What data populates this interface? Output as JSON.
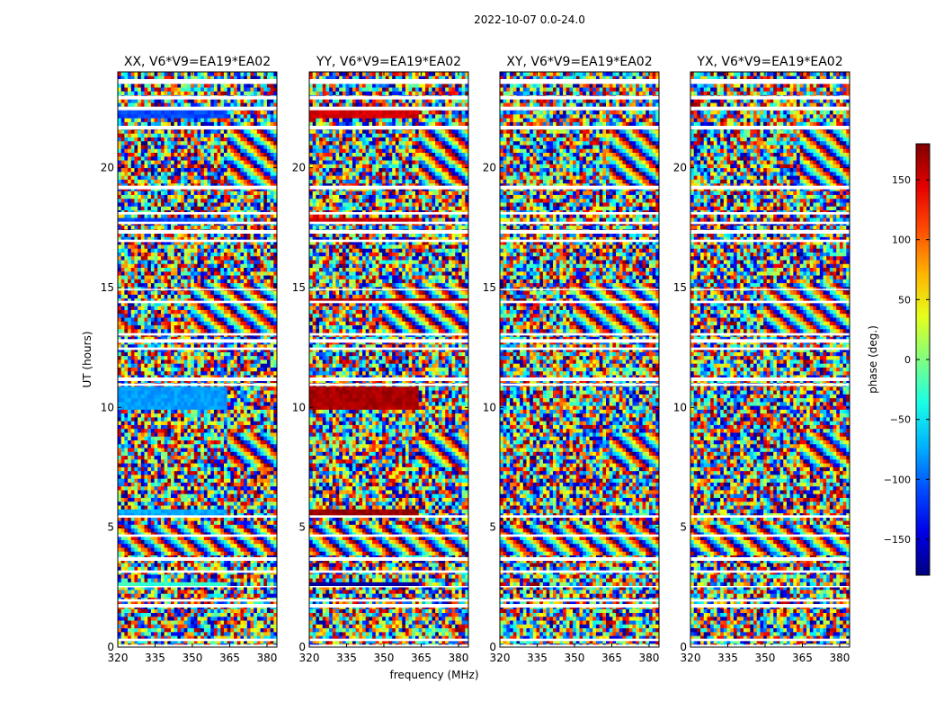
{
  "chart_data": {
    "type": "heatmap",
    "suptitle": "2022-10-07 0.0-24.0",
    "panels": [
      {
        "title": "XX, V6*V9=EA19*EA02",
        "pol": "XX"
      },
      {
        "title": "YY, V6*V9=EA19*EA02",
        "pol": "YY"
      },
      {
        "title": "XY, V6*V9=EA19*EA02",
        "pol": "XY"
      },
      {
        "title": "YX, V6*V9=EA19*EA02",
        "pol": "YX"
      }
    ],
    "xlabel": "frequency (MHz)",
    "ylabel": "UT (hours)",
    "xlim": [
      320,
      384
    ],
    "ylim": [
      0,
      24
    ],
    "xticks": [
      320,
      335,
      350,
      365,
      380
    ],
    "yticks": [
      0,
      5,
      10,
      15,
      20
    ],
    "colorbar": {
      "label": "phase (deg.)",
      "range": [
        -180,
        180
      ],
      "ticks": [
        -150,
        -100,
        -50,
        0,
        50,
        100,
        150
      ],
      "colormap": "jet"
    },
    "flag_gaps_hours": [
      [
        23.5,
        23.7
      ],
      [
        22.85,
        23.0
      ],
      [
        22.4,
        22.55
      ],
      [
        21.6,
        21.75
      ],
      [
        19.1,
        19.25
      ],
      [
        18.05,
        18.15
      ],
      [
        17.65,
        17.75
      ],
      [
        17.25,
        17.4
      ],
      [
        16.9,
        17.0
      ],
      [
        14.9,
        14.95
      ],
      [
        14.35,
        14.45
      ],
      [
        13.0,
        13.1
      ],
      [
        12.7,
        12.85
      ],
      [
        12.4,
        12.5
      ],
      [
        11.1,
        11.25
      ],
      [
        10.9,
        11.0
      ],
      [
        5.4,
        5.5
      ],
      [
        4.6,
        4.7
      ],
      [
        3.6,
        3.75
      ],
      [
        3.1,
        3.2
      ],
      [
        2.5,
        2.55
      ],
      [
        1.9,
        2.0
      ],
      [
        1.65,
        1.8
      ],
      [
        0.25,
        0.35
      ],
      [
        0.0,
        0.1
      ]
    ],
    "coherent_bands": [
      {
        "hours": [
          22.1,
          22.5
        ],
        "freq_max": 364,
        "XX": -110,
        "YY": 150,
        "XY": null,
        "YX": null
      },
      {
        "hours": [
          17.75,
          17.9
        ],
        "freq_max": 364,
        "XX": -110,
        "YY": 150,
        "XY": null,
        "YX": null
      },
      {
        "hours": [
          14.35,
          14.55
        ],
        "freq_max": 384,
        "XX": null,
        "YY": 160,
        "XY": null,
        "YX": null
      },
      {
        "hours": [
          9.9,
          10.9
        ],
        "freq_max": 364,
        "XX": -80,
        "YY": 165,
        "XY": null,
        "YX": null
      },
      {
        "hours": [
          5.5,
          5.75
        ],
        "freq_max": 364,
        "XX": -75,
        "YY": 170,
        "XY": null,
        "YX": null
      },
      {
        "hours": [
          2.55,
          2.8
        ],
        "freq_max": 364,
        "XX": -25,
        "YY": -170,
        "XY": null,
        "YX": null
      }
    ],
    "fringe_regions": [
      {
        "hours": [
          19.0,
          22.0
        ],
        "freq": [
          364,
          384
        ]
      },
      {
        "hours": [
          13.2,
          15.2
        ],
        "freq": [
          350,
          384
        ]
      },
      {
        "hours": [
          7.5,
          9.0
        ],
        "freq": [
          364,
          384
        ]
      },
      {
        "hours": [
          3.8,
          5.2
        ],
        "freq": [
          320,
          384
        ]
      }
    ]
  }
}
